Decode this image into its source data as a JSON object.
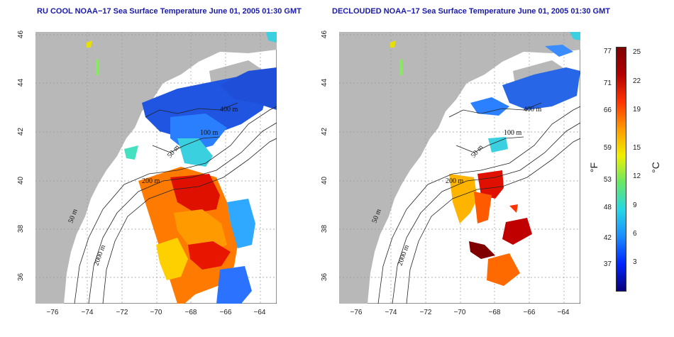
{
  "panels": [
    {
      "title": "RU COOL NOAA−17 Sea Surface Temperature June 01, 2005 01:30 GMT"
    },
    {
      "title": "DECLOUDED NOAA−17 Sea Surface Temperature June 01, 2005 01:30 GMT"
    }
  ],
  "axes": {
    "x_ticks": [
      "−76",
      "−74",
      "−72",
      "−70",
      "−68",
      "−66",
      "−64"
    ],
    "y_ticks": [
      "36",
      "38",
      "40",
      "42",
      "44",
      "46"
    ]
  },
  "contour_labels": [
    "50 m",
    "2000 m",
    "200 m",
    "100 m",
    "400 m",
    "50 m"
  ],
  "colorbar": {
    "fahrenheit_ticks": [
      "77",
      "71",
      "66",
      "59",
      "53",
      "48",
      "42",
      "37"
    ],
    "celsius_ticks": [
      "25",
      "22",
      "19",
      "15",
      "12",
      "9",
      "6",
      "3"
    ],
    "unit_f": "°F",
    "unit_c": "°C",
    "colors": [
      "#08007a",
      "#0024ff",
      "#1a8cff",
      "#26d7e6",
      "#66e866",
      "#f0f000",
      "#ff9900",
      "#ff3300",
      "#b30000",
      "#800000"
    ]
  }
}
